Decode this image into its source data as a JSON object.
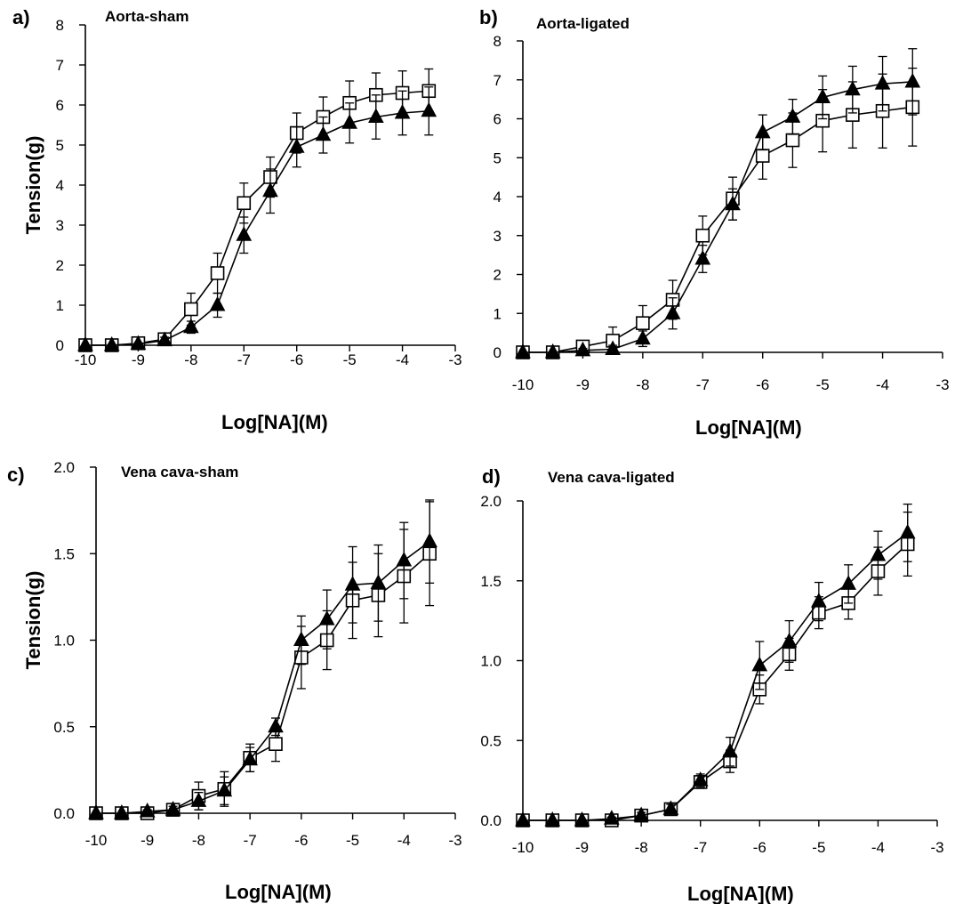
{
  "chart_data": [
    {
      "type": "line",
      "panel": "a)",
      "title": "Aorta-sham",
      "xlabel": "Log[NA](M)",
      "ylabel": "Tension(g)",
      "xlim": [
        -10,
        -3
      ],
      "ylim": [
        0,
        8
      ],
      "xticks": [
        -10,
        -9,
        -8,
        -7,
        -6,
        -5,
        -4,
        -3
      ],
      "xtick_labels": [
        "-10",
        "-9",
        "-8",
        "-7",
        "-6",
        "-5",
        "-4",
        "-3"
      ],
      "yticks": [
        0,
        1,
        2,
        3,
        4,
        5,
        6,
        7,
        8
      ],
      "ytick_labels": [
        "0",
        "1",
        "2",
        "3",
        "4",
        "5",
        "6",
        "7",
        "8"
      ],
      "x": [
        -10,
        -9.5,
        -9,
        -8.5,
        -8,
        -7.5,
        -7,
        -6.5,
        -6,
        -5.5,
        -5,
        -4.5,
        -4,
        -3.5
      ],
      "series": [
        {
          "marker": "open-square",
          "values": [
            0,
            0,
            0.05,
            0.15,
            0.9,
            1.8,
            3.55,
            4.2,
            5.3,
            5.7,
            6.05,
            6.25,
            6.3,
            6.35
          ],
          "errors": [
            0,
            0,
            0.05,
            0.1,
            0.4,
            0.5,
            0.5,
            0.5,
            0.5,
            0.5,
            0.55,
            0.55,
            0.55,
            0.55
          ]
        },
        {
          "marker": "filled-triangle",
          "values": [
            0,
            0,
            0.03,
            0.12,
            0.45,
            1.0,
            2.75,
            3.85,
            4.95,
            5.25,
            5.55,
            5.7,
            5.8,
            5.85
          ],
          "errors": [
            0,
            0,
            0.03,
            0.08,
            0.15,
            0.3,
            0.45,
            0.55,
            0.5,
            0.45,
            0.5,
            0.55,
            0.55,
            0.6
          ]
        }
      ],
      "grid": false
    },
    {
      "type": "line",
      "panel": "b)",
      "title": "Aorta-ligated",
      "xlabel": "Log[NA](M)",
      "ylabel": "",
      "xlim": [
        -10,
        -3
      ],
      "ylim": [
        0,
        8
      ],
      "xticks": [
        -10,
        -9,
        -8,
        -7,
        -6,
        -5,
        -4,
        -3
      ],
      "xtick_labels": [
        "-10",
        "-9",
        "-8",
        "-7",
        "-6",
        "-5",
        "-4",
        "-3"
      ],
      "yticks": [
        0,
        1,
        2,
        3,
        4,
        5,
        6,
        7,
        8
      ],
      "ytick_labels": [
        "0",
        "1",
        "2",
        "3",
        "4",
        "5",
        "6",
        "7",
        "8"
      ],
      "x": [
        -10,
        -9.5,
        -9,
        -8.5,
        -8,
        -7.5,
        -7,
        -6.5,
        -6,
        -5.5,
        -5,
        -4.5,
        -4,
        -3.5
      ],
      "series": [
        {
          "marker": "open-square",
          "values": [
            0,
            0,
            0.15,
            0.3,
            0.75,
            1.35,
            3.0,
            3.95,
            5.05,
            5.45,
            5.95,
            6.1,
            6.2,
            6.3
          ],
          "errors": [
            0,
            0,
            0.15,
            0.35,
            0.45,
            0.5,
            0.5,
            0.55,
            0.6,
            0.7,
            0.8,
            0.85,
            0.95,
            1.0
          ]
        },
        {
          "marker": "filled-triangle",
          "values": [
            0,
            0,
            0.05,
            0.08,
            0.35,
            1.0,
            2.4,
            3.8,
            5.65,
            6.05,
            6.55,
            6.75,
            6.9,
            6.95
          ],
          "errors": [
            0,
            0,
            0.05,
            0.1,
            0.2,
            0.4,
            0.35,
            0.4,
            0.45,
            0.45,
            0.55,
            0.6,
            0.7,
            0.85
          ]
        }
      ],
      "grid": false
    },
    {
      "type": "line",
      "panel": "c)",
      "title": "Vena cava-sham",
      "xlabel": "Log[NA](M)",
      "ylabel": "Tension(g)",
      "xlim": [
        -10,
        -3
      ],
      "ylim": [
        0,
        2
      ],
      "xticks": [
        -10,
        -9,
        -8,
        -7,
        -6,
        -5,
        -4,
        -3
      ],
      "xtick_labels": [
        "-10",
        "-9",
        "-8",
        "-7",
        "-6",
        "-5",
        "-4",
        "-3"
      ],
      "yticks": [
        0,
        0.5,
        1,
        1.5,
        2
      ],
      "ytick_labels": [
        "0.0",
        "0.5",
        "1.0",
        "1.5",
        "2.0"
      ],
      "x": [
        -10,
        -9.5,
        -9,
        -8.5,
        -8,
        -7.5,
        -7,
        -6.5,
        -6,
        -5.5,
        -5,
        -4.5,
        -4,
        -3.5
      ],
      "series": [
        {
          "marker": "open-square",
          "values": [
            0,
            0,
            0,
            0.02,
            0.1,
            0.14,
            0.32,
            0.4,
            0.9,
            1.0,
            1.23,
            1.26,
            1.37,
            1.5
          ],
          "errors": [
            0,
            0,
            0.01,
            0.02,
            0.08,
            0.1,
            0.08,
            0.1,
            0.18,
            0.17,
            0.22,
            0.24,
            0.27,
            0.3
          ]
        },
        {
          "marker": "filled-triangle",
          "values": [
            0,
            0,
            0.01,
            0.02,
            0.07,
            0.13,
            0.31,
            0.5,
            1.0,
            1.12,
            1.32,
            1.33,
            1.46,
            1.57
          ],
          "errors": [
            0,
            0,
            0.01,
            0.02,
            0.05,
            0.08,
            0.07,
            0.05,
            0.14,
            0.17,
            0.22,
            0.22,
            0.22,
            0.24
          ]
        }
      ],
      "grid": false
    },
    {
      "type": "line",
      "panel": "d)",
      "title": "Vena cava-ligated",
      "xlabel": "Log[NA](M)",
      "ylabel": "",
      "xlim": [
        -10,
        -3
      ],
      "ylim": [
        0,
        2
      ],
      "xticks": [
        -10,
        -9,
        -8,
        -7,
        -6,
        -5,
        -4,
        -3
      ],
      "xtick_labels": [
        "-10",
        "-9",
        "-8",
        "-7",
        "-6",
        "-5",
        "-4",
        "-3"
      ],
      "yticks": [
        0,
        0.5,
        1,
        1.5,
        2
      ],
      "ytick_labels": [
        "0.0",
        "0.5",
        "1.0",
        "1.5",
        "2.0"
      ],
      "x": [
        -10,
        -9.5,
        -9,
        -8.5,
        -8,
        -7.5,
        -7,
        -6.5,
        -6,
        -5.5,
        -5,
        -4.5,
        -4,
        -3.5
      ],
      "series": [
        {
          "marker": "open-square",
          "values": [
            0,
            0,
            0,
            0,
            0.03,
            0.07,
            0.24,
            0.37,
            0.82,
            1.04,
            1.3,
            1.36,
            1.56,
            1.73
          ],
          "errors": [
            0,
            0,
            0,
            0.01,
            0.02,
            0.03,
            0.04,
            0.07,
            0.09,
            0.1,
            0.1,
            0.1,
            0.15,
            0.2
          ]
        },
        {
          "marker": "filled-triangle",
          "values": [
            0,
            0,
            0,
            0.01,
            0.03,
            0.07,
            0.25,
            0.43,
            0.97,
            1.12,
            1.37,
            1.48,
            1.66,
            1.8
          ],
          "errors": [
            0,
            0,
            0,
            0.01,
            0.02,
            0.03,
            0.04,
            0.09,
            0.15,
            0.13,
            0.12,
            0.12,
            0.15,
            0.18
          ]
        }
      ],
      "grid": false
    }
  ]
}
